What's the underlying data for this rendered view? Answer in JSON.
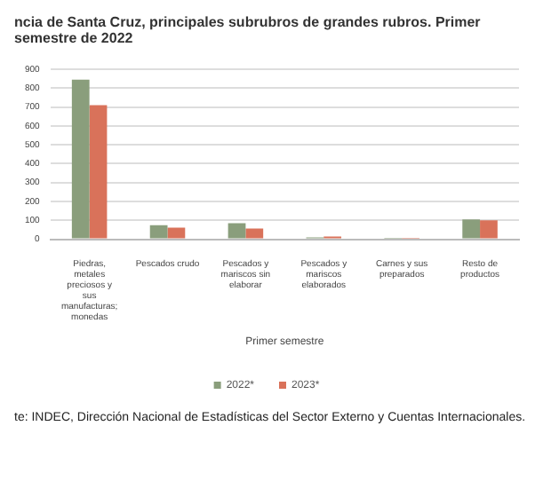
{
  "chart_data": {
    "type": "bar",
    "title": "ncia de Santa Cruz, principales subrubros de grandes rubros. Primer semestre de 2022",
    "xlabel": "Primer semestre",
    "categories": [
      "Piedras, metales preciosos y sus manufacturas; monedas",
      "Pescados crudo",
      "Pescados y mariscos sin elaborar",
      "Pescados y mariscos elaborados",
      "Carnes y sus preparados",
      "Resto de productos"
    ],
    "series": [
      {
        "name": "2022*",
        "color": "#8a9e7c",
        "values": [
          845,
          75,
          85,
          10,
          8,
          105
        ]
      },
      {
        "name": "2023*",
        "color": "#d9725a",
        "values": [
          710,
          62,
          57,
          15,
          7,
          100
        ]
      }
    ],
    "ylim": [
      0,
      900
    ],
    "yticks": [
      0,
      100,
      200,
      300,
      400,
      500,
      600,
      700,
      800,
      900
    ],
    "grid": "y",
    "legend": "bottom",
    "annotations": [
      "te: INDEC, Dirección Nacional de Estadísticas del Sector Externo y Cuentas Internacionales."
    ]
  }
}
